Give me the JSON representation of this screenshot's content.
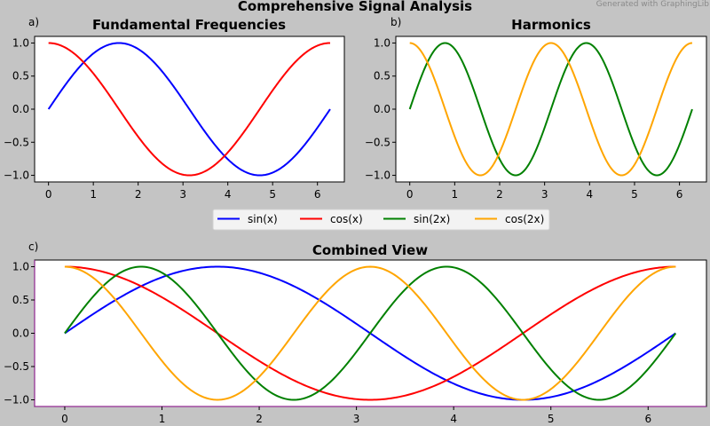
{
  "figure": {
    "suptitle": "Comprehensive Signal Analysis",
    "watermark": "Generated with GraphingLib"
  },
  "legend": {
    "entries": [
      {
        "label": "sin(x)",
        "color": "#0000ff"
      },
      {
        "label": "cos(x)",
        "color": "#ff0000"
      },
      {
        "label": "sin(2x)",
        "color": "#008000"
      },
      {
        "label": "cos(2x)",
        "color": "#ffa500"
      }
    ]
  },
  "chart_data": [
    {
      "panel": "a)",
      "type": "line",
      "title": "Fundamental Frequencies",
      "xlim": [
        -0.31,
        6.6
      ],
      "ylim": [
        -1.1,
        1.1
      ],
      "xticks": [
        0,
        1,
        2,
        3,
        4,
        5,
        6
      ],
      "xtick_labels": [
        "0",
        "1",
        "2",
        "3",
        "4",
        "5",
        "6"
      ],
      "yticks": [
        -1.0,
        -0.5,
        0.0,
        0.5,
        1.0
      ],
      "ytick_labels": [
        "−1.0",
        "−0.5",
        "0.0",
        "0.5",
        "1.0"
      ],
      "grid": false,
      "x_domain": [
        0,
        6.283
      ],
      "series": [
        {
          "name": "sin(x)",
          "function": "sin(x)",
          "color": "#0000ff"
        },
        {
          "name": "cos(x)",
          "function": "cos(x)",
          "color": "#ff0000"
        }
      ]
    },
    {
      "panel": "b)",
      "type": "line",
      "title": "Harmonics",
      "xlim": [
        -0.31,
        6.6
      ],
      "ylim": [
        -1.1,
        1.1
      ],
      "xticks": [
        0,
        1,
        2,
        3,
        4,
        5,
        6
      ],
      "xtick_labels": [
        "0",
        "1",
        "2",
        "3",
        "4",
        "5",
        "6"
      ],
      "yticks": [
        -1.0,
        -0.5,
        0.0,
        0.5,
        1.0
      ],
      "ytick_labels": [
        "−1.0",
        "−0.5",
        "0.0",
        "0.5",
        "1.0"
      ],
      "grid": false,
      "x_domain": [
        0,
        6.283
      ],
      "series": [
        {
          "name": "sin(2x)",
          "function": "sin(2x)",
          "color": "#008000"
        },
        {
          "name": "cos(2x)",
          "function": "cos(2x)",
          "color": "#ffa500"
        }
      ]
    },
    {
      "panel": "c)",
      "type": "line",
      "title": "Combined View",
      "xlim": [
        -0.31,
        6.6
      ],
      "ylim": [
        -1.1,
        1.1
      ],
      "xticks": [
        0,
        1,
        2,
        3,
        4,
        5,
        6
      ],
      "xtick_labels": [
        "0",
        "1",
        "2",
        "3",
        "4",
        "5",
        "6"
      ],
      "yticks": [
        -1.0,
        -0.5,
        0.0,
        0.5,
        1.0
      ],
      "ytick_labels": [
        "−1.0",
        "−0.5",
        "0.0",
        "0.5",
        "1.0"
      ],
      "grid": false,
      "x_domain": [
        0,
        6.283
      ],
      "series": [
        {
          "name": "sin(x)",
          "function": "sin(x)",
          "color": "#0000ff"
        },
        {
          "name": "cos(x)",
          "function": "cos(x)",
          "color": "#ff0000"
        },
        {
          "name": "sin(2x)",
          "function": "sin(2x)",
          "color": "#008000"
        },
        {
          "name": "cos(2x)",
          "function": "cos(2x)",
          "color": "#ffa500"
        }
      ]
    }
  ]
}
